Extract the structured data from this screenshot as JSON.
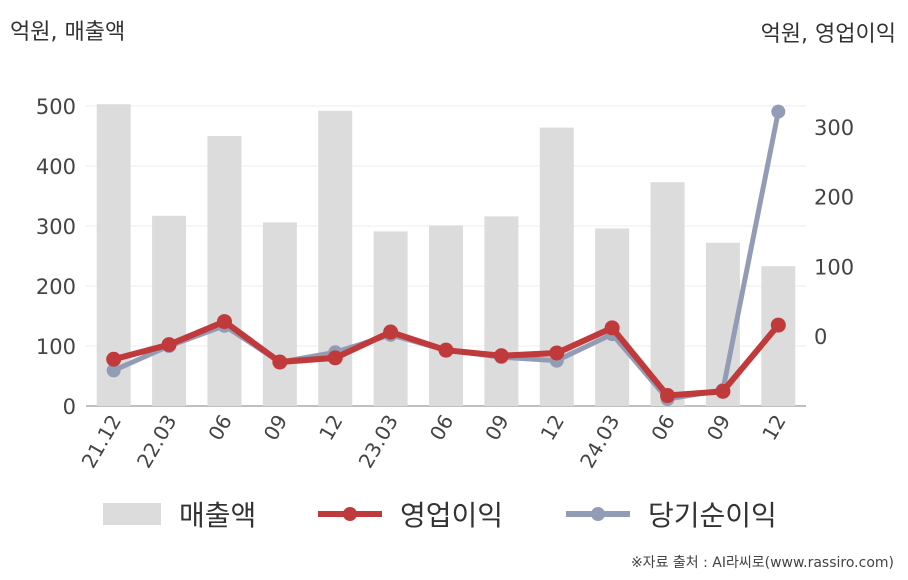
{
  "units": {
    "left": "억원, 매출액",
    "right": "억원, 영업이익"
  },
  "legend": {
    "revenue": "매출액",
    "operating": "영업이익",
    "net": "당기순이익"
  },
  "source": "※자료 출처 : AI라씨로(www.rassiro.com)",
  "colors": {
    "revenue": "#dcdcdc",
    "operating": "#c0393b",
    "net": "#929cb5"
  },
  "chart_data": {
    "type": "bar+line",
    "categories": [
      "21.12",
      "22.03",
      "06",
      "09",
      "12",
      "23.03",
      "06",
      "09",
      "12",
      "24.03",
      "06",
      "09",
      "12"
    ],
    "y_left": {
      "ylim": [
        0,
        500
      ],
      "ticks": [
        0,
        100,
        200,
        300,
        400,
        500
      ]
    },
    "y_right": {
      "ylim": [
        -100,
        330
      ],
      "ticks": [
        0,
        100,
        200,
        300
      ]
    },
    "series": [
      {
        "name": "매출액",
        "type": "bar",
        "axis": "left",
        "values": [
          503,
          317,
          450,
          306,
          492,
          291,
          301,
          316,
          464,
          296,
          373,
          272,
          233
        ]
      },
      {
        "name": "영업이익",
        "type": "line",
        "axis": "right",
        "values": [
          -33,
          -12,
          21,
          -37,
          -31,
          6,
          -20,
          -28,
          -24,
          12,
          -85,
          -79,
          16
        ]
      },
      {
        "name": "당기순이익",
        "type": "line",
        "axis": "right",
        "values": [
          -49,
          -14,
          15,
          -37,
          -23,
          2,
          -20,
          -30,
          -35,
          3,
          -90,
          -77,
          322
        ]
      }
    ]
  }
}
